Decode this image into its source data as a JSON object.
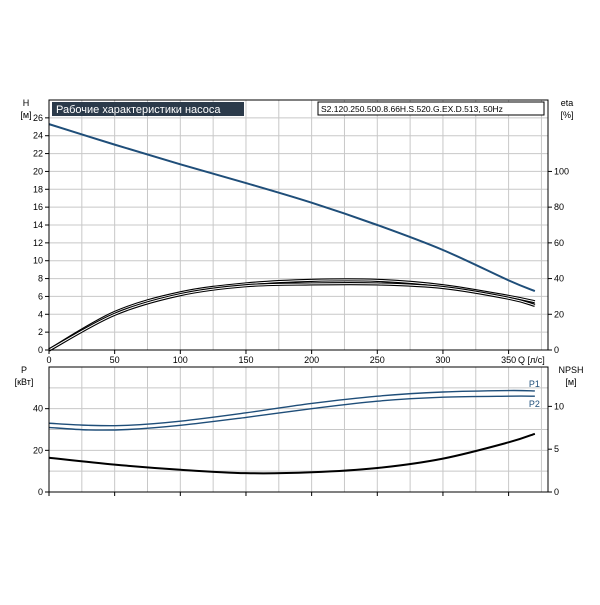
{
  "colors": {
    "head": "#1f4e79",
    "power": "#1f4e79",
    "npsh": "#000000",
    "eta": "#000000",
    "title_bg": "#2b3a4a",
    "title_fg": "#ffffff",
    "grid": "#c8c8c8"
  },
  "chart_data": [
    {
      "type": "line",
      "title": "Рабочие характеристики насоса",
      "model": "S2.120.250.500.8.66H.S.520.G.EX.D.513, 50Hz",
      "xlabel": "Q [л/с]",
      "ylabel_left": "H",
      "ylabel_left_unit": "[м]",
      "ylabel_right": "eta",
      "ylabel_right_unit": "[%]",
      "xlim": [
        0,
        380
      ],
      "ylim_left": [
        0,
        28
      ],
      "ylim_right": [
        0,
        140
      ],
      "x_ticks": [
        0,
        50,
        100,
        150,
        200,
        250,
        300,
        350
      ],
      "y_ticks_left": [
        0,
        2,
        4,
        6,
        8,
        10,
        12,
        14,
        16,
        18,
        20,
        22,
        24,
        26
      ],
      "y_ticks_right": [
        0,
        20,
        40,
        60,
        80,
        100
      ],
      "grid": true,
      "series": [
        {
          "axis": "left",
          "style": "head",
          "x": [
            0,
            50,
            100,
            150,
            200,
            250,
            300,
            350,
            370
          ],
          "y": [
            25.3,
            23.0,
            20.8,
            18.7,
            16.5,
            14.0,
            11.2,
            7.8,
            6.6
          ]
        },
        {
          "axis": "right",
          "style": "eta",
          "x": [
            0,
            50,
            100,
            150,
            200,
            250,
            300,
            350,
            370
          ],
          "y": [
            0,
            21,
            32,
            37,
            39,
            39,
            36,
            30,
            27
          ]
        },
        {
          "axis": "right",
          "style": "eta",
          "x": [
            0,
            50,
            100,
            150,
            200,
            250,
            300,
            350,
            370
          ],
          "y": [
            0,
            20,
            31,
            36,
            37,
            37,
            35,
            29,
            25
          ]
        }
      ]
    },
    {
      "type": "line",
      "ylabel_left": "P",
      "ylabel_left_unit": "[кВт]",
      "ylabel_right": "NPSH",
      "ylabel_right_unit": "[м]",
      "xlim": [
        0,
        380
      ],
      "ylim_left": [
        0,
        60
      ],
      "ylim_right": [
        0,
        14.6
      ],
      "y_ticks_left": [
        0,
        20,
        40
      ],
      "y_ticks_right": [
        0,
        5,
        10
      ],
      "grid": true,
      "series": [
        {
          "name": "P1",
          "axis": "left",
          "style": "power",
          "x": [
            0,
            30,
            60,
            100,
            150,
            200,
            250,
            300,
            350,
            370
          ],
          "y": [
            33,
            32,
            32,
            34,
            38,
            42.5,
            46,
            48,
            48.7,
            48.5
          ]
        },
        {
          "name": "P2",
          "axis": "left",
          "style": "power",
          "x": [
            0,
            30,
            60,
            100,
            150,
            200,
            250,
            300,
            350,
            370
          ],
          "y": [
            31,
            29.8,
            30,
            32,
            35.8,
            40,
            43.6,
            45.5,
            46,
            46
          ]
        },
        {
          "axis": "right",
          "style": "npsh",
          "x": [
            0,
            50,
            100,
            150,
            200,
            250,
            300,
            350,
            370
          ],
          "y": [
            4.0,
            3.2,
            2.6,
            2.2,
            2.3,
            2.8,
            3.9,
            5.8,
            6.8
          ]
        }
      ]
    }
  ]
}
